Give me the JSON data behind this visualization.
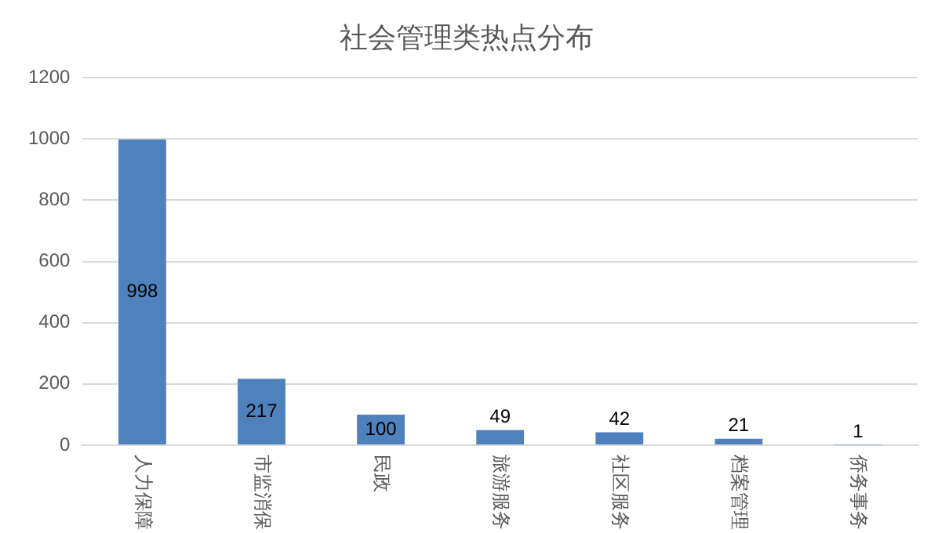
{
  "chart_data": {
    "type": "bar",
    "title": "社会管理类热点分布",
    "categories": [
      "人力保障",
      "市监消保",
      "民政",
      "旅游服务",
      "社区服务",
      "档案管理",
      "侨务事务"
    ],
    "values": [
      998,
      217,
      100,
      49,
      42,
      21,
      1
    ],
    "color": "#4f81bd",
    "ylim": [
      0,
      1200
    ],
    "yticks": [
      0,
      200,
      400,
      600,
      800,
      1000,
      1200
    ],
    "grid": "y",
    "data_labels": true
  }
}
